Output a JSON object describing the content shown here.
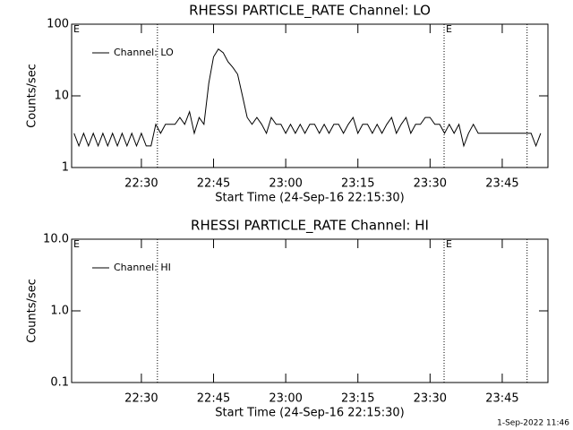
{
  "chart_data": [
    {
      "type": "line",
      "title": "RHESSI PARTICLE_RATE Channel: LO",
      "x_label": "Start Time (24-Sep-16 22:15:30)",
      "y_label": "Counts/sec",
      "y_log": true,
      "ylim": [
        1,
        100
      ],
      "yticks": [
        1,
        10,
        100
      ],
      "xlim": [
        "22:15:30",
        "23:54:30"
      ],
      "xticks": [
        "22:30",
        "22:45",
        "23:00",
        "23:15",
        "23:30",
        "23:45"
      ],
      "event_lines": [
        "22:33:20",
        "23:32:55",
        "23:50:10"
      ],
      "flags": [
        {
          "x": "22:15:30",
          "label": "E"
        },
        {
          "x": "23:32:55",
          "label": "E"
        }
      ],
      "legend": "upper left",
      "x": [
        "22:16",
        "22:17",
        "22:18",
        "22:19",
        "22:20",
        "22:21",
        "22:22",
        "22:23",
        "22:24",
        "22:25",
        "22:26",
        "22:27",
        "22:28",
        "22:29",
        "22:30",
        "22:31",
        "22:32",
        "22:33",
        "22:34",
        "22:35",
        "22:36",
        "22:37",
        "22:38",
        "22:39",
        "22:40",
        "22:41",
        "22:42",
        "22:43",
        "22:44",
        "22:45",
        "22:46",
        "22:47",
        "22:48",
        "22:49",
        "22:50",
        "22:51",
        "22:52",
        "22:53",
        "22:54",
        "22:55",
        "22:56",
        "22:57",
        "22:58",
        "22:59",
        "23:00",
        "23:01",
        "23:02",
        "23:03",
        "23:04",
        "23:05",
        "23:06",
        "23:07",
        "23:08",
        "23:09",
        "23:10",
        "23:11",
        "23:12",
        "23:13",
        "23:14",
        "23:15",
        "23:16",
        "23:17",
        "23:18",
        "23:19",
        "23:20",
        "23:21",
        "23:22",
        "23:23",
        "23:24",
        "23:25",
        "23:26",
        "23:27",
        "23:28",
        "23:29",
        "23:30",
        "23:31",
        "23:32",
        "23:33",
        "23:34",
        "23:35",
        "23:36",
        "23:37",
        "23:38",
        "23:39",
        "23:40",
        "23:41",
        "23:42",
        "23:43",
        "23:44",
        "23:45",
        "23:46",
        "23:47",
        "23:48",
        "23:49",
        "23:50",
        "23:51",
        "23:52",
        "23:53"
      ],
      "series": [
        {
          "name": "Channel: LO",
          "color": "#000000",
          "values": [
            3,
            2,
            3,
            2,
            3,
            2,
            3,
            2,
            3,
            2,
            3,
            2,
            3,
            2,
            3,
            2,
            2,
            4,
            3,
            4,
            4,
            4,
            5,
            4,
            6,
            3,
            5,
            4,
            15,
            35,
            45,
            40,
            30,
            25,
            20,
            10,
            5,
            4,
            5,
            4,
            3,
            5,
            4,
            4,
            3,
            4,
            3,
            4,
            3,
            4,
            4,
            3,
            4,
            3,
            4,
            4,
            3,
            4,
            5,
            3,
            4,
            4,
            3,
            4,
            3,
            4,
            5,
            3,
            4,
            5,
            3,
            4,
            4,
            5,
            5,
            4,
            4,
            3,
            4,
            3,
            4,
            2,
            3,
            4,
            3,
            3,
            3,
            3,
            3,
            3,
            3,
            3,
            3,
            3,
            3,
            3,
            2,
            3
          ]
        }
      ]
    },
    {
      "type": "line",
      "title": "RHESSI PARTICLE_RATE Channel: HI",
      "x_label": "Start Time (24-Sep-16 22:15:30)",
      "y_label": "Counts/sec",
      "y_log": true,
      "ylim": [
        0.1,
        10
      ],
      "yticks": [
        0.1,
        {
          "value": 1,
          "label": "1.0"
        },
        {
          "value": 10,
          "label": "10.0"
        }
      ],
      "xlim": [
        "22:15:30",
        "23:54:30"
      ],
      "xticks": [
        "22:30",
        "22:45",
        "23:00",
        "23:15",
        "23:30",
        "23:45"
      ],
      "event_lines": [
        "22:33:20",
        "23:32:55",
        "23:50:10"
      ],
      "flags": [
        {
          "x": "22:15:30",
          "label": "E"
        },
        {
          "x": "23:32:55",
          "label": "E"
        }
      ],
      "legend": "upper left",
      "x": [],
      "series": [
        {
          "name": "Channel: HI",
          "color": "#000000",
          "values": []
        }
      ]
    }
  ],
  "footer": "1-Sep-2022 11:46"
}
